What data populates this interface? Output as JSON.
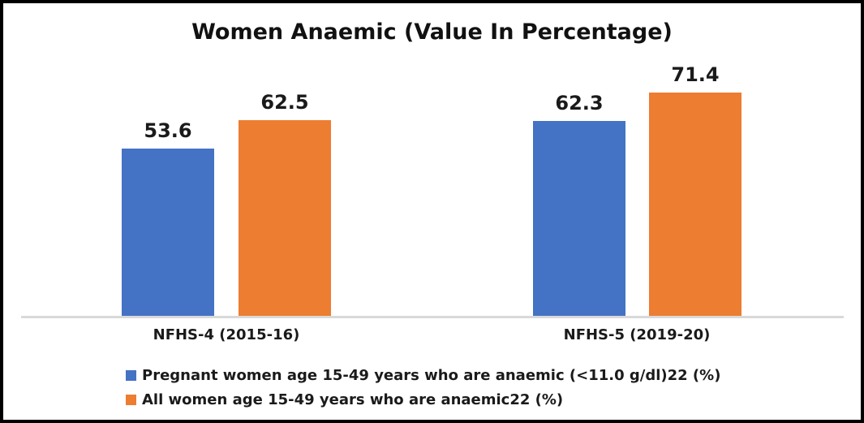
{
  "chart_data": {
    "type": "bar",
    "title": "Women Anaemic (Value In Percentage)",
    "categories": [
      "NFHS-4 (2015-16)",
      "NFHS-5 (2019-20)"
    ],
    "series": [
      {
        "name": "Pregnant women age 15-49 years who are anaemic (<11.0 g/dl)22 (%)",
        "color": "#4472C4",
        "values": [
          53.6,
          62.3
        ]
      },
      {
        "name": "All women age 15-49 years who are anaemic22 (%)",
        "color": "#ED7D31",
        "values": [
          62.5,
          71.4
        ]
      }
    ],
    "ylim": [
      0,
      80
    ],
    "grid": false,
    "y_axis_visible": false,
    "legend_position": "bottom-left",
    "value_label_format": "one-decimal",
    "colors": {
      "background": "#FFFFFF",
      "frame_border": "#000000",
      "axis_line": "#D9D9D9",
      "text": "#1A1A1A"
    }
  }
}
